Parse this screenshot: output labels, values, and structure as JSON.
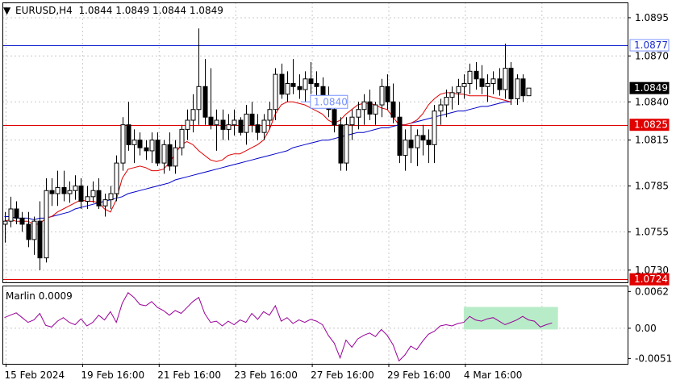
{
  "header": {
    "menu_glyph": "▼",
    "symbol_info": "EURUSD,H4  1.0844 1.0849 1.0844 1.0849"
  },
  "colors": {
    "background": "#ffffff",
    "grid": "#c8c8c8",
    "frame": "#000000",
    "ma_fast": "#e00000",
    "ma_slow": "#0000c8",
    "level_blue": "#1c2bd0",
    "level_red": "#e00000",
    "oscillator": "#9a009a",
    "highlight": "#b8ecc8",
    "price_box": "#000000",
    "label_box_blue": "#7892ff",
    "label_box_red": "#e00000"
  },
  "chart_data": [
    {
      "type": "candlestick",
      "symbol": "EURUSD",
      "timeframe": "H4",
      "ohlc_current": {
        "open": 1.0844,
        "high": 1.0849,
        "low": 1.0844,
        "close": 1.0849
      },
      "ylim": [
        1.0722,
        1.0905
      ],
      "y_ticks": [
        "1.0895",
        "1.0870",
        "1.0840",
        "1.0815",
        "1.0785",
        "1.0755",
        "1.0730"
      ],
      "x_ticks": [
        "15 Feb 2024",
        "19 Feb 16:00",
        "21 Feb 16:00",
        "23 Feb 16:00",
        "27 Feb 16:00",
        "29 Feb 16:00",
        "4 Mar 16:00"
      ],
      "price_labels": [
        {
          "text": "1.0877",
          "value": 1.0877,
          "style": "blue"
        },
        {
          "text": "1.0849",
          "value": 1.0849,
          "style": "black"
        },
        {
          "text": "1.0825",
          "value": 1.0825,
          "style": "red"
        },
        {
          "text": "1.0724",
          "value": 1.0724,
          "style": "red"
        }
      ],
      "horizontal_levels": [
        {
          "value": 1.0877,
          "color": "blue"
        },
        {
          "value": 1.0825,
          "color": "red"
        },
        {
          "value": 1.0724,
          "color": "red"
        }
      ],
      "callout": {
        "text": "1.0840",
        "value": 1.084,
        "index": 49.5
      },
      "candles": [
        [
          1.076,
          1.0768,
          1.0748,
          1.0762
        ],
        [
          1.0762,
          1.0778,
          1.0758,
          1.077
        ],
        [
          1.077,
          1.0775,
          1.076,
          1.0764
        ],
        [
          1.0764,
          1.0768,
          1.0755,
          1.076
        ],
        [
          1.076,
          1.0768,
          1.0745,
          1.075
        ],
        [
          1.075,
          1.0765,
          1.074,
          1.0762
        ],
        [
          1.0762,
          1.0775,
          1.073,
          1.0738
        ],
        [
          1.0738,
          1.079,
          1.0735,
          1.0782
        ],
        [
          1.0782,
          1.079,
          1.0772,
          1.078
        ],
        [
          1.078,
          1.0795,
          1.0772,
          1.0784
        ],
        [
          1.0784,
          1.0795,
          1.0775,
          1.078
        ],
        [
          1.078,
          1.0788,
          1.0774,
          1.0782
        ],
        [
          1.0782,
          1.0792,
          1.0776,
          1.0785
        ],
        [
          1.0785,
          1.079,
          1.077,
          1.0775
        ],
        [
          1.0775,
          1.0785,
          1.077,
          1.0778
        ],
        [
          1.0778,
          1.0788,
          1.0774,
          1.0782
        ],
        [
          1.0782,
          1.079,
          1.077,
          1.0772
        ],
        [
          1.0772,
          1.078,
          1.0765,
          1.0776
        ],
        [
          1.0776,
          1.0785,
          1.077,
          1.078
        ],
        [
          1.078,
          1.0805,
          1.0775,
          1.08
        ],
        [
          1.08,
          1.083,
          1.0795,
          1.0825
        ],
        [
          1.0825,
          1.084,
          1.0808,
          1.0812
        ],
        [
          1.0812,
          1.0822,
          1.08,
          1.0815
        ],
        [
          1.0815,
          1.082,
          1.0805,
          1.081
        ],
        [
          1.081,
          1.0815,
          1.0802,
          1.0808
        ],
        [
          1.0808,
          1.082,
          1.08,
          1.0815
        ],
        [
          1.0815,
          1.082,
          1.0798,
          1.08
        ],
        [
          1.08,
          1.0815,
          1.0793,
          1.0812
        ],
        [
          1.0812,
          1.082,
          1.0795,
          1.0798
        ],
        [
          1.0798,
          1.0815,
          1.0793,
          1.081
        ],
        [
          1.081,
          1.0825,
          1.0805,
          1.0822
        ],
        [
          1.0822,
          1.0835,
          1.0815,
          1.0828
        ],
        [
          1.0828,
          1.0845,
          1.082,
          1.0835
        ],
        [
          1.0835,
          1.0888,
          1.0825,
          1.085
        ],
        [
          1.085,
          1.0868,
          1.0825,
          1.083
        ],
        [
          1.083,
          1.0862,
          1.0822,
          1.0825
        ],
        [
          1.0825,
          1.0835,
          1.0808,
          1.0828
        ],
        [
          1.0828,
          1.0835,
          1.0815,
          1.0822
        ],
        [
          1.0822,
          1.0832,
          1.0815,
          1.0825
        ],
        [
          1.0825,
          1.0835,
          1.0818,
          1.0828
        ],
        [
          1.0828,
          1.083,
          1.0818,
          1.082
        ],
        [
          1.082,
          1.0838,
          1.0812,
          1.0832
        ],
        [
          1.0832,
          1.084,
          1.082,
          1.0825
        ],
        [
          1.0825,
          1.0832,
          1.0815,
          1.082
        ],
        [
          1.082,
          1.0832,
          1.0815,
          1.0828
        ],
        [
          1.0828,
          1.084,
          1.0822,
          1.0835
        ],
        [
          1.0835,
          1.0862,
          1.0828,
          1.0858
        ],
        [
          1.0858,
          1.0865,
          1.0842,
          1.0845
        ],
        [
          1.0845,
          1.086,
          1.084,
          1.0852
        ],
        [
          1.0852,
          1.0868,
          1.0845,
          1.085
        ],
        [
          1.085,
          1.0858,
          1.0842,
          1.0848
        ],
        [
          1.0848,
          1.086,
          1.084,
          1.0855
        ],
        [
          1.0855,
          1.0866,
          1.0845,
          1.0852
        ],
        [
          1.0852,
          1.086,
          1.0842,
          1.085
        ],
        [
          1.085,
          1.0856,
          1.084,
          1.0844
        ],
        [
          1.0844,
          1.085,
          1.083,
          1.0835
        ],
        [
          1.0835,
          1.0838,
          1.082,
          1.0825
        ],
        [
          1.0825,
          1.083,
          1.0795,
          1.08
        ],
        [
          1.08,
          1.083,
          1.0795,
          1.0825
        ],
        [
          1.0825,
          1.0835,
          1.0815,
          1.083
        ],
        [
          1.083,
          1.084,
          1.0822,
          1.0835
        ],
        [
          1.0835,
          1.0845,
          1.0825,
          1.084
        ],
        [
          1.084,
          1.0848,
          1.0828,
          1.0832
        ],
        [
          1.0832,
          1.084,
          1.0825,
          1.0838
        ],
        [
          1.0838,
          1.0855,
          1.083,
          1.085
        ],
        [
          1.085,
          1.0858,
          1.0835,
          1.084
        ],
        [
          1.084,
          1.0852,
          1.0826,
          1.083
        ],
        [
          1.083,
          1.084,
          1.08,
          1.0805
        ],
        [
          1.0805,
          1.0822,
          1.0795,
          1.0815
        ],
        [
          1.0815,
          1.0825,
          1.08,
          1.081
        ],
        [
          1.081,
          1.0822,
          1.0798,
          1.0818
        ],
        [
          1.0818,
          1.0825,
          1.0805,
          1.0815
        ],
        [
          1.0815,
          1.0822,
          1.08,
          1.0812
        ],
        [
          1.0812,
          1.0838,
          1.08,
          1.0834
        ],
        [
          1.0834,
          1.0842,
          1.0825,
          1.0838
        ],
        [
          1.0838,
          1.0848,
          1.083,
          1.0843
        ],
        [
          1.0843,
          1.085,
          1.0835,
          1.0846
        ],
        [
          1.0846,
          1.0855,
          1.0838,
          1.085
        ],
        [
          1.085,
          1.0858,
          1.0842,
          1.0852
        ],
        [
          1.0852,
          1.0865,
          1.0845,
          1.086
        ],
        [
          1.086,
          1.0866,
          1.0848,
          1.0855
        ],
        [
          1.0855,
          1.0864,
          1.0845,
          1.085
        ],
        [
          1.085,
          1.0858,
          1.084,
          1.0852
        ],
        [
          1.0852,
          1.086,
          1.0845,
          1.0855
        ],
        [
          1.0855,
          1.0862,
          1.0844,
          1.0848
        ],
        [
          1.0848,
          1.0878,
          1.0842,
          1.0862
        ],
        [
          1.0862,
          1.0866,
          1.0838,
          1.0842
        ],
        [
          1.0842,
          1.0858,
          1.0838,
          1.0855
        ],
        [
          1.0855,
          1.0858,
          1.084,
          1.0844
        ],
        [
          1.0844,
          1.0849,
          1.0844,
          1.0849
        ]
      ],
      "ma_fast": [
        1.0762,
        1.0763,
        1.0762,
        1.0762,
        1.0762,
        1.076,
        1.076,
        1.0764,
        1.0765,
        1.0768,
        1.077,
        1.0772,
        1.0774,
        1.0776,
        1.0775,
        1.0775,
        1.0774,
        1.077,
        1.0768,
        1.0776,
        1.079,
        1.0796,
        1.0797,
        1.0798,
        1.0797,
        1.0795,
        1.0795,
        1.0796,
        1.08,
        1.0806,
        1.0812,
        1.0814,
        1.0812,
        1.0808,
        1.0805,
        1.0802,
        1.0801,
        1.0802,
        1.0805,
        1.0806,
        1.0806,
        1.0808,
        1.081,
        1.0812,
        1.0815,
        1.0822,
        1.0832,
        1.0838,
        1.084,
        1.084,
        1.0839,
        1.0838,
        1.0836,
        1.0834,
        1.0832,
        1.0828,
        1.0826,
        1.0828,
        1.0832,
        1.0835,
        1.0838,
        1.0839,
        1.0839,
        1.0838,
        1.0836,
        1.0835,
        1.083,
        1.0825,
        1.0825,
        1.0826,
        1.0828,
        1.0832,
        1.0838,
        1.0842,
        1.0845,
        1.0846,
        1.0846,
        1.0845,
        1.0845,
        1.0844,
        1.0844,
        1.0844,
        1.0844,
        1.0843,
        1.0842,
        1.0841,
        1.084
      ],
      "ma_slow": [
        1.0765,
        1.0765,
        1.0764,
        1.0764,
        1.0764,
        1.0763,
        1.0764,
        1.0764,
        1.0765,
        1.0766,
        1.0767,
        1.0768,
        1.077,
        1.0771,
        1.0772,
        1.0773,
        1.0774,
        1.0775,
        1.0776,
        1.0777,
        1.0778,
        1.078,
        1.0781,
        1.0782,
        1.0783,
        1.0784,
        1.0785,
        1.0786,
        1.0787,
        1.0789,
        1.079,
        1.0791,
        1.0792,
        1.0793,
        1.0794,
        1.0795,
        1.0796,
        1.0797,
        1.0798,
        1.0799,
        1.08,
        1.0801,
        1.0802,
        1.0803,
        1.0804,
        1.0805,
        1.0806,
        1.0807,
        1.0808,
        1.081,
        1.0811,
        1.0812,
        1.0813,
        1.0814,
        1.0815,
        1.0815,
        1.0816,
        1.0817,
        1.0818,
        1.0819,
        1.082,
        1.082,
        1.0821,
        1.0822,
        1.0823,
        1.0823,
        1.0824,
        1.0825,
        1.0825,
        1.0826,
        1.0827,
        1.0828,
        1.0829,
        1.083,
        1.0831,
        1.0832,
        1.0833,
        1.0834,
        1.0834,
        1.0835,
        1.0836,
        1.0837,
        1.0837,
        1.0838,
        1.0839,
        1.084,
        1.084
      ]
    },
    {
      "type": "line",
      "indicator_label": "Marlin 0.0009",
      "ylim": [
        -0.006,
        0.0072
      ],
      "y_ticks": [
        "0.0062",
        "0.00",
        "-0.0051"
      ],
      "highlight_box": {
        "from_index": 78,
        "to_index": 94,
        "y_from": -0.0002,
        "y_to": 0.0036
      },
      "values": [
        0.0018,
        0.0022,
        0.0026,
        0.0018,
        0.001,
        0.0014,
        0.0025,
        0.0005,
        0.0002,
        0.0012,
        0.0018,
        0.001,
        0.0006,
        0.0016,
        0.0004,
        0.001,
        0.0022,
        0.0014,
        0.0028,
        0.001,
        0.0042,
        0.006,
        0.0052,
        0.004,
        0.0038,
        0.0045,
        0.0035,
        0.003,
        0.0022,
        0.003,
        0.0025,
        0.0035,
        0.0045,
        0.0052,
        0.0025,
        0.001,
        0.0012,
        0.0004,
        0.0012,
        0.0006,
        0.0014,
        0.001,
        0.0025,
        0.0015,
        0.0028,
        0.0022,
        0.0038,
        0.0012,
        0.0018,
        0.0008,
        0.0014,
        0.001,
        0.0015,
        0.0012,
        0.0006,
        -0.0012,
        -0.0025,
        -0.005,
        -0.002,
        -0.0032,
        -0.0018,
        -0.0012,
        -0.0008,
        -0.0014,
        -0.0002,
        -0.0012,
        -0.0028,
        -0.0055,
        -0.0045,
        -0.003,
        -0.0036,
        -0.0022,
        -0.001,
        -0.0005,
        0.0004,
        0.0006,
        0.0004,
        0.0008,
        0.001,
        0.002,
        0.0014,
        0.0012,
        0.0016,
        0.0018,
        0.0012,
        0.0006,
        0.001,
        0.0014,
        0.002,
        0.0014,
        0.0012,
        0.0002,
        0.0006,
        0.0009
      ]
    }
  ]
}
